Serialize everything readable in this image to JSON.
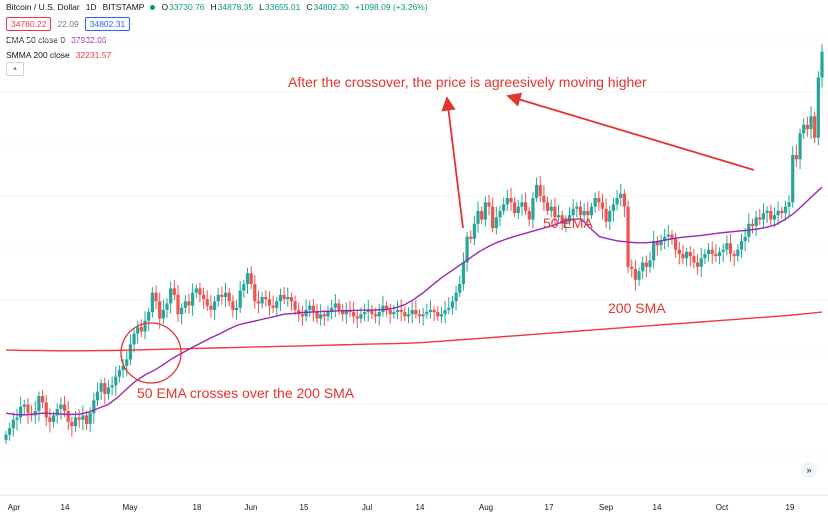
{
  "header": {
    "symbol": "Bitcoin / U.S. Dollar",
    "interval": "1D",
    "exchange": "BITSTAMP",
    "ohlc": [
      {
        "key": "O",
        "value": "33730.76"
      },
      {
        "key": "H",
        "value": "34878.35"
      },
      {
        "key": "L",
        "value": "33655.01"
      },
      {
        "key": "C",
        "value": "34802.30"
      }
    ],
    "change": "+1098.09 (+3.26%)",
    "bid": "34780.22",
    "spread": "22.09",
    "ask": "34802.31"
  },
  "indicators": [
    {
      "label": "EMA 50 close 0",
      "value": "37932.06",
      "color": "#9c27b0"
    },
    {
      "label": "SMMA 200 close",
      "value": "32231.57",
      "color": "#f23645"
    }
  ],
  "icons": {
    "collapse": "chevron-up-icon",
    "scroll": "double-chevron-right-icon"
  },
  "annotations": {
    "crossover": "50 EMA crosses over the 200 SMA",
    "after": "After the crossover, the price is agreesively moving higher",
    "ema": "50 EMA",
    "sma": "200 SMA"
  },
  "x_axis": [
    "Apr",
    "14",
    "May",
    "18",
    "Jun",
    "15",
    "Jul",
    "14",
    "Aug",
    "17",
    "Sep",
    "14",
    "Oct",
    "19"
  ],
  "colors": {
    "up": "#26a69a",
    "down": "#ef5350",
    "ema": "#9c27b0",
    "sma": "#f23645",
    "annotation": "#e3342f"
  },
  "chart_data": {
    "type": "candlestick",
    "closes": [
      6400,
      6550,
      6750,
      6800,
      7050,
      7100,
      6900,
      6850,
      6950,
      7300,
      7150,
      6800,
      6700,
      6850,
      7000,
      7100,
      6950,
      6700,
      6600,
      6800,
      6750,
      6850,
      6650,
      6900,
      7200,
      7400,
      7600,
      7350,
      7500,
      7550,
      7750,
      7900,
      8000,
      8150,
      8500,
      8750,
      8900,
      8800,
      9050,
      9250,
      9700,
      9500,
      9100,
      9300,
      9450,
      9800,
      9650,
      9200,
      9350,
      9500,
      9400,
      9700,
      9800,
      9650,
      9550,
      9400,
      9300,
      9500,
      9650,
      9600,
      9700,
      9500,
      9300,
      9350,
      9750,
      9900,
      10150,
      9900,
      9500,
      9450,
      9600,
      9550,
      9400,
      9350,
      9500,
      9650,
      9550,
      9600,
      9500,
      9300,
      9200,
      9150,
      9300,
      9400,
      9250,
      9100,
      9200,
      9150,
      9250,
      9350,
      9450,
      9300,
      9200,
      9300,
      9250,
      9150,
      9100,
      9200,
      9250,
      9300,
      9200,
      9150,
      9250,
      9400,
      9300,
      9200,
      9250,
      9300,
      9250,
      9150,
      9200,
      9300,
      9200,
      9150,
      9200,
      9250,
      9300,
      9250,
      9150,
      9200,
      9300,
      9350,
      9500,
      9700,
      9900,
      10400,
      11000,
      10950,
      11300,
      11600,
      11400,
      11800,
      11700,
      11200,
      11450,
      11600,
      11750,
      11900,
      11800,
      11550,
      11700,
      11800,
      11600,
      11400,
      11900,
      12200,
      11950,
      11800,
      11600,
      11700,
      11450,
      11500,
      11300,
      11350,
      11500,
      11650,
      11700,
      11500,
      11600,
      11500,
      11700,
      11900,
      11800,
      11650,
      11350,
      11600,
      11750,
      11900,
      12000,
      11700,
      10300,
      10250,
      10000,
      10200,
      10400,
      10300,
      10450,
      10900,
      10800,
      10900,
      11000,
      11050,
      10950,
      10700,
      10600,
      10500,
      10650,
      10550,
      10400,
      10300,
      10500,
      10600,
      10700,
      10600,
      10550,
      10650,
      10700,
      10850,
      10600,
      10550,
      10700,
      10900,
      11000,
      11300,
      11250,
      11450,
      11400,
      11550,
      11600,
      11400,
      11500,
      11600,
      11550,
      11700,
      11800,
      12900,
      12800,
      13400,
      13600,
      13500,
      13800,
      13300,
      14700,
      15300
    ],
    "ema50": [
      6900,
      6870,
      6860,
      6880,
      6900,
      6890,
      6880,
      6870,
      6880,
      6930,
      7020,
      7100,
      7260,
      7460,
      7650,
      7790,
      7900,
      8030,
      8180,
      8300,
      8420,
      8530,
      8640,
      8740,
      8850,
      8950,
      9000,
      9050,
      9100,
      9150,
      9200,
      9220,
      9240,
      9250,
      9260,
      9270,
      9280,
      9285,
      9290,
      9295,
      9300,
      9310,
      9350,
      9420,
      9550,
      9700,
      9880,
      10050,
      10200,
      10350,
      10500,
      10650,
      10770,
      10870,
      10950,
      11020,
      11080,
      11140,
      11200,
      11260,
      11350,
      11400,
      11420,
      11200,
      11000,
      10950,
      10900,
      10880,
      10860,
      10860,
      10880,
      10920,
      10960,
      10990,
      11010,
      11030,
      11060,
      11090,
      11110,
      11130,
      11150,
      11180,
      11220,
      11280,
      11400,
      11550,
      11750,
      11950,
      12150
    ],
    "sma200": [
      8370,
      8360,
      8355,
      8350,
      8350,
      8352,
      8358,
      8365,
      8375,
      8385,
      8395,
      8405,
      8415,
      8425,
      8435,
      8445,
      8455,
      8465,
      8475,
      8485,
      8495,
      8505,
      8515,
      8525,
      8540,
      8570,
      8600,
      8630,
      8660,
      8690,
      8720,
      8750,
      8780,
      8810,
      8840,
      8870,
      8900,
      8930,
      8960,
      8990,
      9020,
      9050,
      9080,
      9110,
      9140,
      9170,
      9210,
      9250
    ],
    "y_range": [
      5000,
      16500
    ]
  }
}
